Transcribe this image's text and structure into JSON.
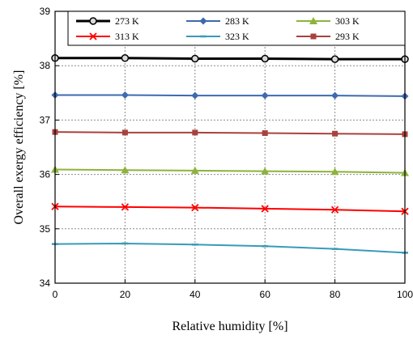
{
  "chart_data": {
    "type": "line",
    "title": "",
    "xlabel": "Relative humidity [%]",
    "ylabel": "Overall exergy efficiency [%]",
    "xlim": [
      0,
      100
    ],
    "ylim": [
      34,
      39
    ],
    "xticks": [
      0,
      20,
      40,
      60,
      80,
      100
    ],
    "yticks": [
      34,
      35,
      36,
      37,
      38,
      39
    ],
    "grid": true,
    "legend_position": "top",
    "x": [
      0,
      20,
      40,
      60,
      80,
      100
    ],
    "series": [
      {
        "name": "273 K",
        "color": "#000000",
        "marker": "circle",
        "values": [
          38.14,
          38.14,
          38.13,
          38.13,
          38.12,
          38.12
        ]
      },
      {
        "name": "283 K",
        "color": "#3d6ab0",
        "marker": "diamond",
        "values": [
          37.46,
          37.46,
          37.45,
          37.45,
          37.45,
          37.44
        ]
      },
      {
        "name": "303 K",
        "color": "#8db33c",
        "marker": "triangle",
        "values": [
          36.09,
          36.08,
          36.07,
          36.06,
          36.05,
          36.03
        ]
      },
      {
        "name": "313 K",
        "color": "#ff0000",
        "marker": "x",
        "values": [
          35.41,
          35.4,
          35.39,
          35.37,
          35.35,
          35.32
        ]
      },
      {
        "name": "323 K",
        "color": "#3a9ab8",
        "marker": "dash",
        "values": [
          34.72,
          34.73,
          34.71,
          34.68,
          34.63,
          34.56
        ]
      },
      {
        "name": "293 K",
        "color": "#a8423d",
        "marker": "square",
        "values": [
          36.78,
          36.77,
          36.77,
          36.76,
          36.75,
          36.74
        ]
      }
    ]
  }
}
